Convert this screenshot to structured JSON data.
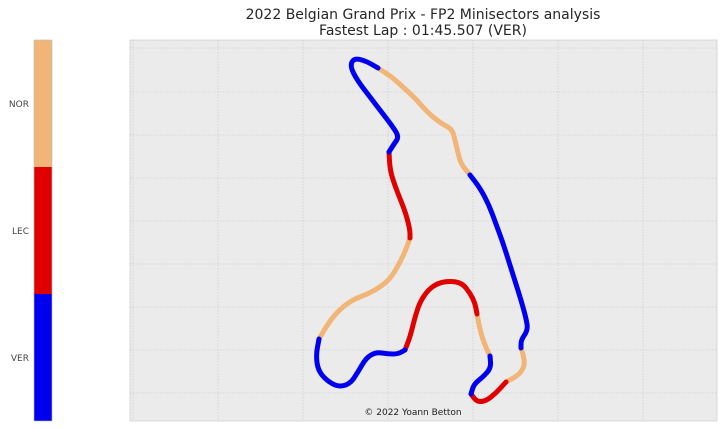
{
  "title_line1": "2022 Belgian Grand Prix - FP2 Minisectors analysis",
  "title_line2": "Fastest Lap : 01:45.507 (VER)",
  "credit": "© 2022 Yoann Betton",
  "colors": {
    "NOR": "#f0b577",
    "LEC": "#e00000",
    "VER": "#0000f0",
    "plot_bg": "#ebebeb",
    "grid": "#c4c4c4"
  },
  "chart_data": {
    "type": "line",
    "title": "2022 Belgian Grand Prix - FP2 Minisectors analysis\nFastest Lap : 01:45.507 (VER)",
    "xlabel": "",
    "ylabel": "",
    "grid": true,
    "legend": "colorbar-left",
    "colorbar": {
      "labels": [
        "NOR",
        "LEC",
        "VER"
      ]
    },
    "series": [
      {
        "name": "NOR",
        "segments": [
          {
            "driver": "NOR",
            "points": [
              [
                378,
                68
              ],
              [
                392,
                77
              ],
              [
                404,
                88
              ],
              [
                416,
                99
              ],
              [
                428,
                113
              ],
              [
                442,
                124
              ],
              [
                452,
                129
              ],
              [
                455,
                140
              ],
              [
                458,
                153
              ],
              [
                461,
                164
              ],
              [
                470,
                175
              ]
            ]
          },
          {
            "driver": "NOR",
            "points": [
              [
                410,
                238
              ],
              [
                405,
                252
              ],
              [
                398,
                266
              ],
              [
                390,
                279
              ],
              [
                380,
                287
              ],
              [
                368,
                294
              ],
              [
                354,
                299
              ],
              [
                340,
                309
              ],
              [
                329,
                322
              ],
              [
                319,
                339
              ]
            ]
          },
          {
            "driver": "NOR",
            "points": [
              [
                477,
                314
              ],
              [
                480,
                330
              ],
              [
                484,
                343
              ],
              [
                490,
                356
              ]
            ]
          },
          {
            "driver": "NOR",
            "points": [
              [
                506,
                382
              ],
              [
                519,
                375
              ],
              [
                525,
                365
              ],
              [
                523,
                354
              ],
              [
                521,
                348
              ]
            ]
          }
        ]
      },
      {
        "name": "LEC",
        "segments": [
          {
            "driver": "LEC",
            "points": [
              [
                389,
                152
              ],
              [
                390,
                170
              ],
              [
                395,
                186
              ],
              [
                401,
                201
              ],
              [
                406,
                214
              ],
              [
                410,
                230
              ],
              [
                410,
                238
              ]
            ]
          },
          {
            "driver": "LEC",
            "points": [
              [
                405,
                350
              ],
              [
                410,
                337
              ],
              [
                413,
                325
              ],
              [
                416,
                314
              ],
              [
                420,
                302
              ],
              [
                428,
                290
              ],
              [
                438,
                283
              ],
              [
                450,
                281
              ],
              [
                462,
                283
              ],
              [
                470,
                293
              ],
              [
                475,
                303
              ],
              [
                477,
                314
              ]
            ]
          },
          {
            "driver": "LEC",
            "points": [
              [
                471,
                394
              ],
              [
                477,
                402
              ],
              [
                486,
                401
              ],
              [
                496,
                393
              ],
              [
                506,
                382
              ]
            ]
          }
        ]
      },
      {
        "name": "VER",
        "segments": [
          {
            "driver": "VER",
            "points": [
              [
                378,
                68
              ],
              [
                366,
                61
              ],
              [
                354,
                58
              ],
              [
                350,
                66
              ],
              [
                357,
                80
              ],
              [
                370,
                97
              ],
              [
                383,
                114
              ],
              [
                393,
                127
              ],
              [
                399,
                137
              ],
              [
                394,
                144
              ],
              [
                389,
                152
              ]
            ]
          },
          {
            "driver": "VER",
            "points": [
              [
                470,
                175
              ],
              [
                480,
                188
              ],
              [
                489,
                205
              ],
              [
                496,
                224
              ],
              [
                503,
                243
              ],
              [
                509,
                262
              ],
              [
                515,
                281
              ],
              [
                521,
                300
              ],
              [
                526,
                318
              ],
              [
                528,
                330
              ],
              [
                521,
                340
              ],
              [
                521,
                348
              ]
            ]
          },
          {
            "driver": "VER",
            "points": [
              [
                490,
                356
              ],
              [
                491,
                368
              ],
              [
                483,
                377
              ],
              [
                474,
                384
              ],
              [
                471,
                394
              ]
            ]
          },
          {
            "driver": "VER",
            "points": [
              [
                319,
                339
              ],
              [
                316,
                355
              ],
              [
                318,
                370
              ],
              [
                326,
                380
              ],
              [
                338,
                387
              ],
              [
                350,
                384
              ],
              [
                358,
                372
              ],
              [
                366,
                358
              ],
              [
                376,
                352
              ],
              [
                388,
                354
              ],
              [
                398,
                354
              ],
              [
                405,
                350
              ]
            ]
          }
        ]
      }
    ]
  }
}
